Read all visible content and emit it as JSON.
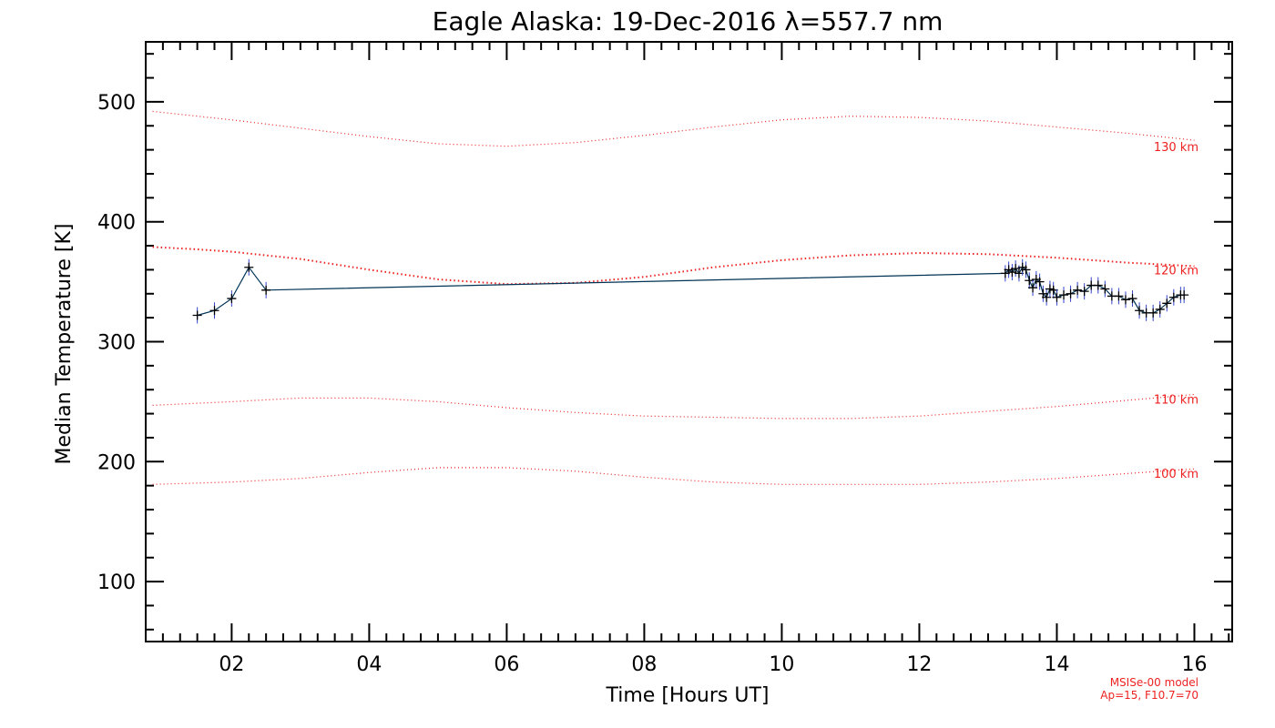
{
  "chart_data": {
    "type": "line",
    "title": "Eagle Alaska: 19-Dec-2016 λ=557.7 nm",
    "xlabel": "Time [Hours UT]",
    "ylabel": "Median Temperature [K]",
    "xlim": [
      0.75,
      16.55
    ],
    "ylim": [
      50,
      550
    ],
    "x_ticks": [
      2,
      4,
      6,
      8,
      10,
      12,
      14,
      16
    ],
    "x_tick_labels": [
      "02",
      "04",
      "06",
      "08",
      "10",
      "12",
      "14",
      "16"
    ],
    "y_ticks": [
      100,
      200,
      300,
      400,
      500
    ],
    "y_tick_labels": [
      "100",
      "200",
      "300",
      "400",
      "500"
    ],
    "grid": false,
    "colors": {
      "measurement": "#003355",
      "marker": "#000000",
      "error_bar": "#3344cc",
      "model": "#ee2222"
    },
    "measured": {
      "x": [
        1.5,
        1.75,
        2.0,
        2.25,
        2.5,
        13.25,
        13.3,
        13.35,
        13.4,
        13.45,
        13.5,
        13.55,
        13.6,
        13.65,
        13.7,
        13.75,
        13.8,
        13.85,
        13.9,
        13.95,
        14.0,
        14.1,
        14.2,
        14.3,
        14.4,
        14.5,
        14.6,
        14.7,
        14.8,
        14.9,
        15.0,
        15.1,
        15.2,
        15.3,
        15.4,
        15.5,
        15.6,
        15.7,
        15.8,
        15.85
      ],
      "y": [
        322,
        326,
        336,
        362,
        343,
        357,
        360,
        358,
        361,
        357,
        362,
        360,
        351,
        345,
        352,
        350,
        340,
        337,
        344,
        343,
        337,
        339,
        340,
        343,
        342,
        347,
        347,
        344,
        338,
        338,
        335,
        336,
        326,
        324,
        324,
        327,
        332,
        337,
        339,
        339
      ]
    },
    "model_name": "MSISe-00 model",
    "model_params": "Ap=15, F10.7=70",
    "model_series": [
      {
        "name": "130 km",
        "x": [
          0.85,
          2,
          3,
          4,
          5,
          6,
          7,
          8,
          9,
          10,
          11,
          12,
          13,
          14,
          15,
          16
        ],
        "y": [
          492,
          485,
          478,
          471,
          465,
          463,
          466,
          472,
          479,
          485,
          488,
          487,
          484,
          479,
          474,
          468
        ]
      },
      {
        "name": "120 km",
        "x": [
          0.85,
          1.5,
          2,
          3,
          4,
          5,
          6,
          7,
          8,
          9,
          10,
          11,
          12,
          13,
          14,
          15,
          16
        ],
        "y": [
          379,
          377,
          375,
          369,
          360,
          352,
          348,
          349,
          354,
          362,
          368,
          372,
          374,
          373,
          370,
          366,
          363
        ]
      },
      {
        "name": "110 km",
        "x": [
          0.85,
          2,
          3,
          4,
          5,
          6,
          7,
          8,
          9,
          10,
          11,
          12,
          13,
          14,
          15,
          16
        ],
        "y": [
          247,
          250,
          253,
          253,
          250,
          245,
          241,
          238,
          237,
          236,
          236,
          238,
          242,
          246,
          251,
          256
        ]
      },
      {
        "name": "100 km",
        "x": [
          0.85,
          2,
          3,
          4,
          5,
          6,
          7,
          8,
          9,
          10,
          11,
          12,
          13,
          14,
          15,
          16
        ],
        "y": [
          181,
          183,
          186,
          191,
          195,
          195,
          192,
          187,
          183,
          181,
          181,
          181,
          183,
          186,
          190,
          194
        ]
      }
    ]
  }
}
